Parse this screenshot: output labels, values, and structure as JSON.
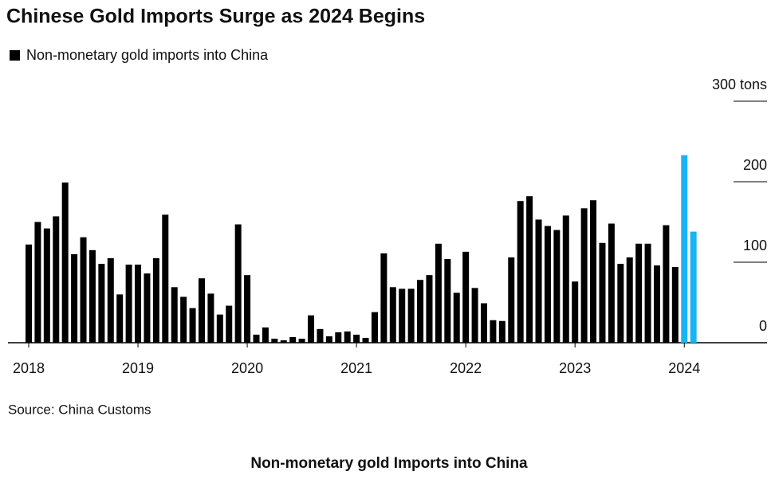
{
  "chart_data": {
    "type": "bar",
    "title": "Chinese Gold Imports Surge as 2024 Begins",
    "legend_label": "Non-monetary gold imports into China",
    "source": "Source: China Customs",
    "caption": "Non-monetary gold Imports into China",
    "color": "#000000",
    "categories": [
      "2018",
      null,
      null,
      null,
      null,
      null,
      null,
      null,
      null,
      null,
      null,
      null,
      "2019",
      null,
      null,
      null,
      null,
      null,
      null,
      null,
      null,
      null,
      null,
      null,
      "2020",
      null,
      null,
      null,
      null,
      null,
      null,
      null,
      null,
      null,
      null,
      null,
      "2021",
      null,
      null,
      null,
      null,
      null,
      null,
      null,
      null,
      null,
      null,
      null,
      "2022",
      null,
      null,
      null,
      null,
      null,
      null,
      null,
      null,
      null,
      null,
      null,
      "2023",
      null,
      null,
      null,
      null,
      null,
      null,
      null,
      null,
      null,
      null,
      null,
      "2024",
      null
    ],
    "values": [
      122,
      150,
      142,
      157,
      199,
      110,
      131,
      115,
      98,
      105,
      60,
      97,
      97,
      86,
      105,
      159,
      69,
      57,
      43,
      80,
      61,
      35,
      46,
      147,
      84,
      10,
      19,
      5,
      3,
      7,
      5,
      34,
      17,
      8,
      13,
      14,
      10,
      6,
      38,
      111,
      69,
      67,
      67,
      78,
      84,
      123,
      104,
      62,
      113,
      68,
      49,
      28,
      27,
      106,
      176,
      182,
      153,
      145,
      140,
      158,
      76,
      167,
      177,
      124,
      148,
      98,
      106,
      123,
      123,
      96,
      146,
      94,
      233,
      138
    ],
    "bar_colors": [
      "#000000",
      "#000000",
      "#000000",
      "#000000",
      "#000000",
      "#000000",
      "#000000",
      "#000000",
      "#000000",
      "#000000",
      "#000000",
      "#000000",
      "#000000",
      "#000000",
      "#000000",
      "#000000",
      "#000000",
      "#000000",
      "#000000",
      "#000000",
      "#000000",
      "#000000",
      "#000000",
      "#000000",
      "#000000",
      "#000000",
      "#000000",
      "#000000",
      "#000000",
      "#000000",
      "#000000",
      "#000000",
      "#000000",
      "#000000",
      "#000000",
      "#000000",
      "#000000",
      "#000000",
      "#000000",
      "#000000",
      "#000000",
      "#000000",
      "#000000",
      "#000000",
      "#000000",
      "#000000",
      "#000000",
      "#000000",
      "#000000",
      "#000000",
      "#000000",
      "#000000",
      "#000000",
      "#000000",
      "#000000",
      "#000000",
      "#000000",
      "#000000",
      "#000000",
      "#000000",
      "#000000",
      "#000000",
      "#000000",
      "#000000",
      "#000000",
      "#000000",
      "#000000",
      "#000000",
      "#000000",
      "#000000",
      "#000000",
      "#000000",
      "#1ab4f5",
      "#1ab4f5"
    ],
    "ylim": [
      0,
      300
    ],
    "yticks": [
      0,
      100,
      200,
      {
        "value": 300,
        "label": "300 tons"
      }
    ]
  }
}
